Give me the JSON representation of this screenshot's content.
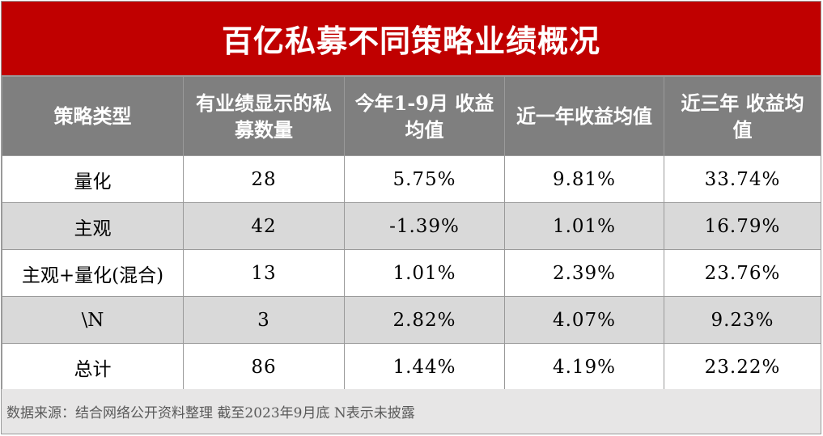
{
  "title": "百亿私募不同策略业绩概况",
  "table": {
    "headers": [
      "策略类型",
      "有业绩显示的私募数量",
      "今年1-9月  收益均值",
      "近一年收益均值",
      "近三年      收益均值"
    ],
    "rows": [
      [
        "量化",
        "28",
        "5.75%",
        "9.81%",
        "33.74%"
      ],
      [
        "主观",
        "42",
        "-1.39%",
        "1.01%",
        "16.79%"
      ],
      [
        "主观+量化(混合)",
        "13",
        "1.01%",
        "2.39%",
        "23.76%"
      ],
      [
        "\\N",
        "3",
        "2.82%",
        "4.07%",
        "9.23%"
      ],
      [
        "总计",
        "86",
        "1.44%",
        "4.19%",
        "23.22%"
      ]
    ]
  },
  "footer": "数据来源：结合网络公开资料整理 截至2023年9月底 N表示未披露",
  "colors": {
    "title_bg": "#c00000",
    "header_bg": "#7f7f7f",
    "shaded_row_bg": "#d9d9d9",
    "footer_bg": "#e7e6e6"
  }
}
